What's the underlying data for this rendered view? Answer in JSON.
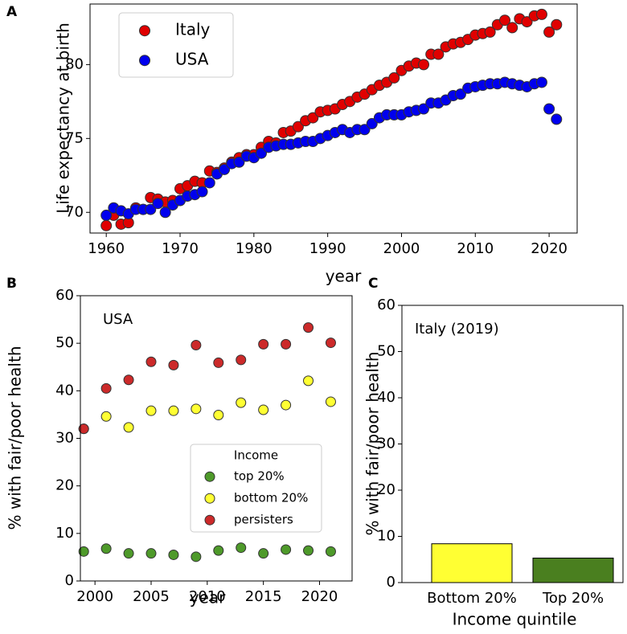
{
  "chart_data": [
    {
      "type": "scatter",
      "label": "A",
      "xlabel": "year",
      "ylabel": "Life expectancy at birth",
      "x": [
        1960,
        1961,
        1962,
        1963,
        1964,
        1965,
        1966,
        1967,
        1968,
        1969,
        1970,
        1971,
        1972,
        1973,
        1974,
        1975,
        1976,
        1977,
        1978,
        1979,
        1980,
        1981,
        1982,
        1983,
        1984,
        1985,
        1986,
        1987,
        1988,
        1989,
        1990,
        1991,
        1992,
        1993,
        1994,
        1995,
        1996,
        1997,
        1998,
        1999,
        2000,
        2001,
        2002,
        2003,
        2004,
        2005,
        2006,
        2007,
        2008,
        2009,
        2010,
        2011,
        2012,
        2013,
        2014,
        2015,
        2016,
        2017,
        2018,
        2019,
        2020,
        2021
      ],
      "series": [
        {
          "name": "Italy",
          "color": "#e00000",
          "values": [
            69.1,
            69.8,
            69.2,
            69.3,
            70.3,
            70.2,
            71.0,
            70.9,
            70.7,
            70.8,
            71.6,
            71.8,
            72.1,
            72.0,
            72.8,
            72.7,
            73.0,
            73.4,
            73.7,
            73.9,
            73.9,
            74.4,
            74.8,
            74.7,
            75.4,
            75.5,
            75.8,
            76.2,
            76.4,
            76.8,
            76.9,
            77.0,
            77.3,
            77.5,
            77.8,
            78.0,
            78.3,
            78.6,
            78.8,
            79.1,
            79.6,
            79.9,
            80.1,
            80.0,
            80.7,
            80.7,
            81.2,
            81.4,
            81.5,
            81.7,
            82.0,
            82.1,
            82.2,
            82.7,
            83.0,
            82.5,
            83.1,
            82.9,
            83.3,
            83.4,
            82.2,
            82.7
          ]
        },
        {
          "name": "USA",
          "color": "#0000ee",
          "values": [
            69.8,
            70.3,
            70.1,
            69.9,
            70.2,
            70.2,
            70.2,
            70.6,
            70.0,
            70.5,
            70.8,
            71.1,
            71.2,
            71.4,
            72.0,
            72.6,
            72.9,
            73.3,
            73.4,
            73.8,
            73.7,
            74.0,
            74.4,
            74.5,
            74.6,
            74.6,
            74.7,
            74.8,
            74.8,
            75.0,
            75.2,
            75.4,
            75.6,
            75.4,
            75.6,
            75.6,
            76.0,
            76.4,
            76.6,
            76.6,
            76.6,
            76.8,
            76.9,
            77.0,
            77.4,
            77.4,
            77.6,
            77.9,
            78.0,
            78.4,
            78.5,
            78.6,
            78.7,
            78.7,
            78.8,
            78.7,
            78.6,
            78.5,
            78.7,
            78.8,
            77.0,
            76.3
          ]
        }
      ],
      "xlim": [
        1957.8,
        2023.8
      ],
      "xticks": [
        1960,
        1970,
        1980,
        1990,
        2000,
        2010,
        2020
      ],
      "ylim": [
        68.6,
        84.1
      ],
      "yticks": [
        70,
        75,
        80
      ],
      "legend": "upper left"
    },
    {
      "type": "scatter",
      "label": "B",
      "xlabel": "year",
      "ylabel": "% with fair/poor health",
      "annotation": "USA",
      "legend_title": "Income",
      "legend": "center right",
      "x": [
        1999,
        2001,
        2003,
        2005,
        2007,
        2009,
        2011,
        2013,
        2015,
        2017,
        2019,
        2021
      ],
      "series": [
        {
          "name": "top 20%",
          "color": "#4e9a2a",
          "values": [
            6.2,
            6.8,
            5.8,
            5.8,
            5.5,
            5.1,
            6.4,
            7.0,
            5.8,
            6.6,
            6.4,
            6.2
          ]
        },
        {
          "name": "bottom 20%",
          "color": "#ffff33",
          "values": [
            32.0,
            34.6,
            32.3,
            35.8,
            35.8,
            36.2,
            34.9,
            37.5,
            36.0,
            37.0,
            42.1,
            37.7
          ]
        },
        {
          "name": "persisters",
          "color": "#cc2a2a",
          "values": [
            32.0,
            40.5,
            42.3,
            46.1,
            45.4,
            49.6,
            45.9,
            46.5,
            49.8,
            49.8,
            53.3,
            50.1
          ]
        }
      ],
      "xlim": [
        1998.7,
        2022.9
      ],
      "xticks": [
        2000,
        2005,
        2010,
        2015,
        2020
      ],
      "ylim": [
        0,
        60
      ],
      "yticks": [
        0,
        10,
        20,
        30,
        40,
        50,
        60
      ]
    },
    {
      "type": "bar",
      "label": "C",
      "xlabel": "Income quintile",
      "ylabel": "% with fair/poor health",
      "annotation": "Italy (2019)",
      "categories": [
        "Bottom 20%",
        "Top 20%"
      ],
      "values": [
        8.4,
        5.3
      ],
      "colors": [
        "#ffff33",
        "#4a7f1f"
      ],
      "ylim": [
        0,
        60
      ],
      "yticks": [
        0,
        10,
        20,
        30,
        40,
        50,
        60
      ]
    }
  ]
}
